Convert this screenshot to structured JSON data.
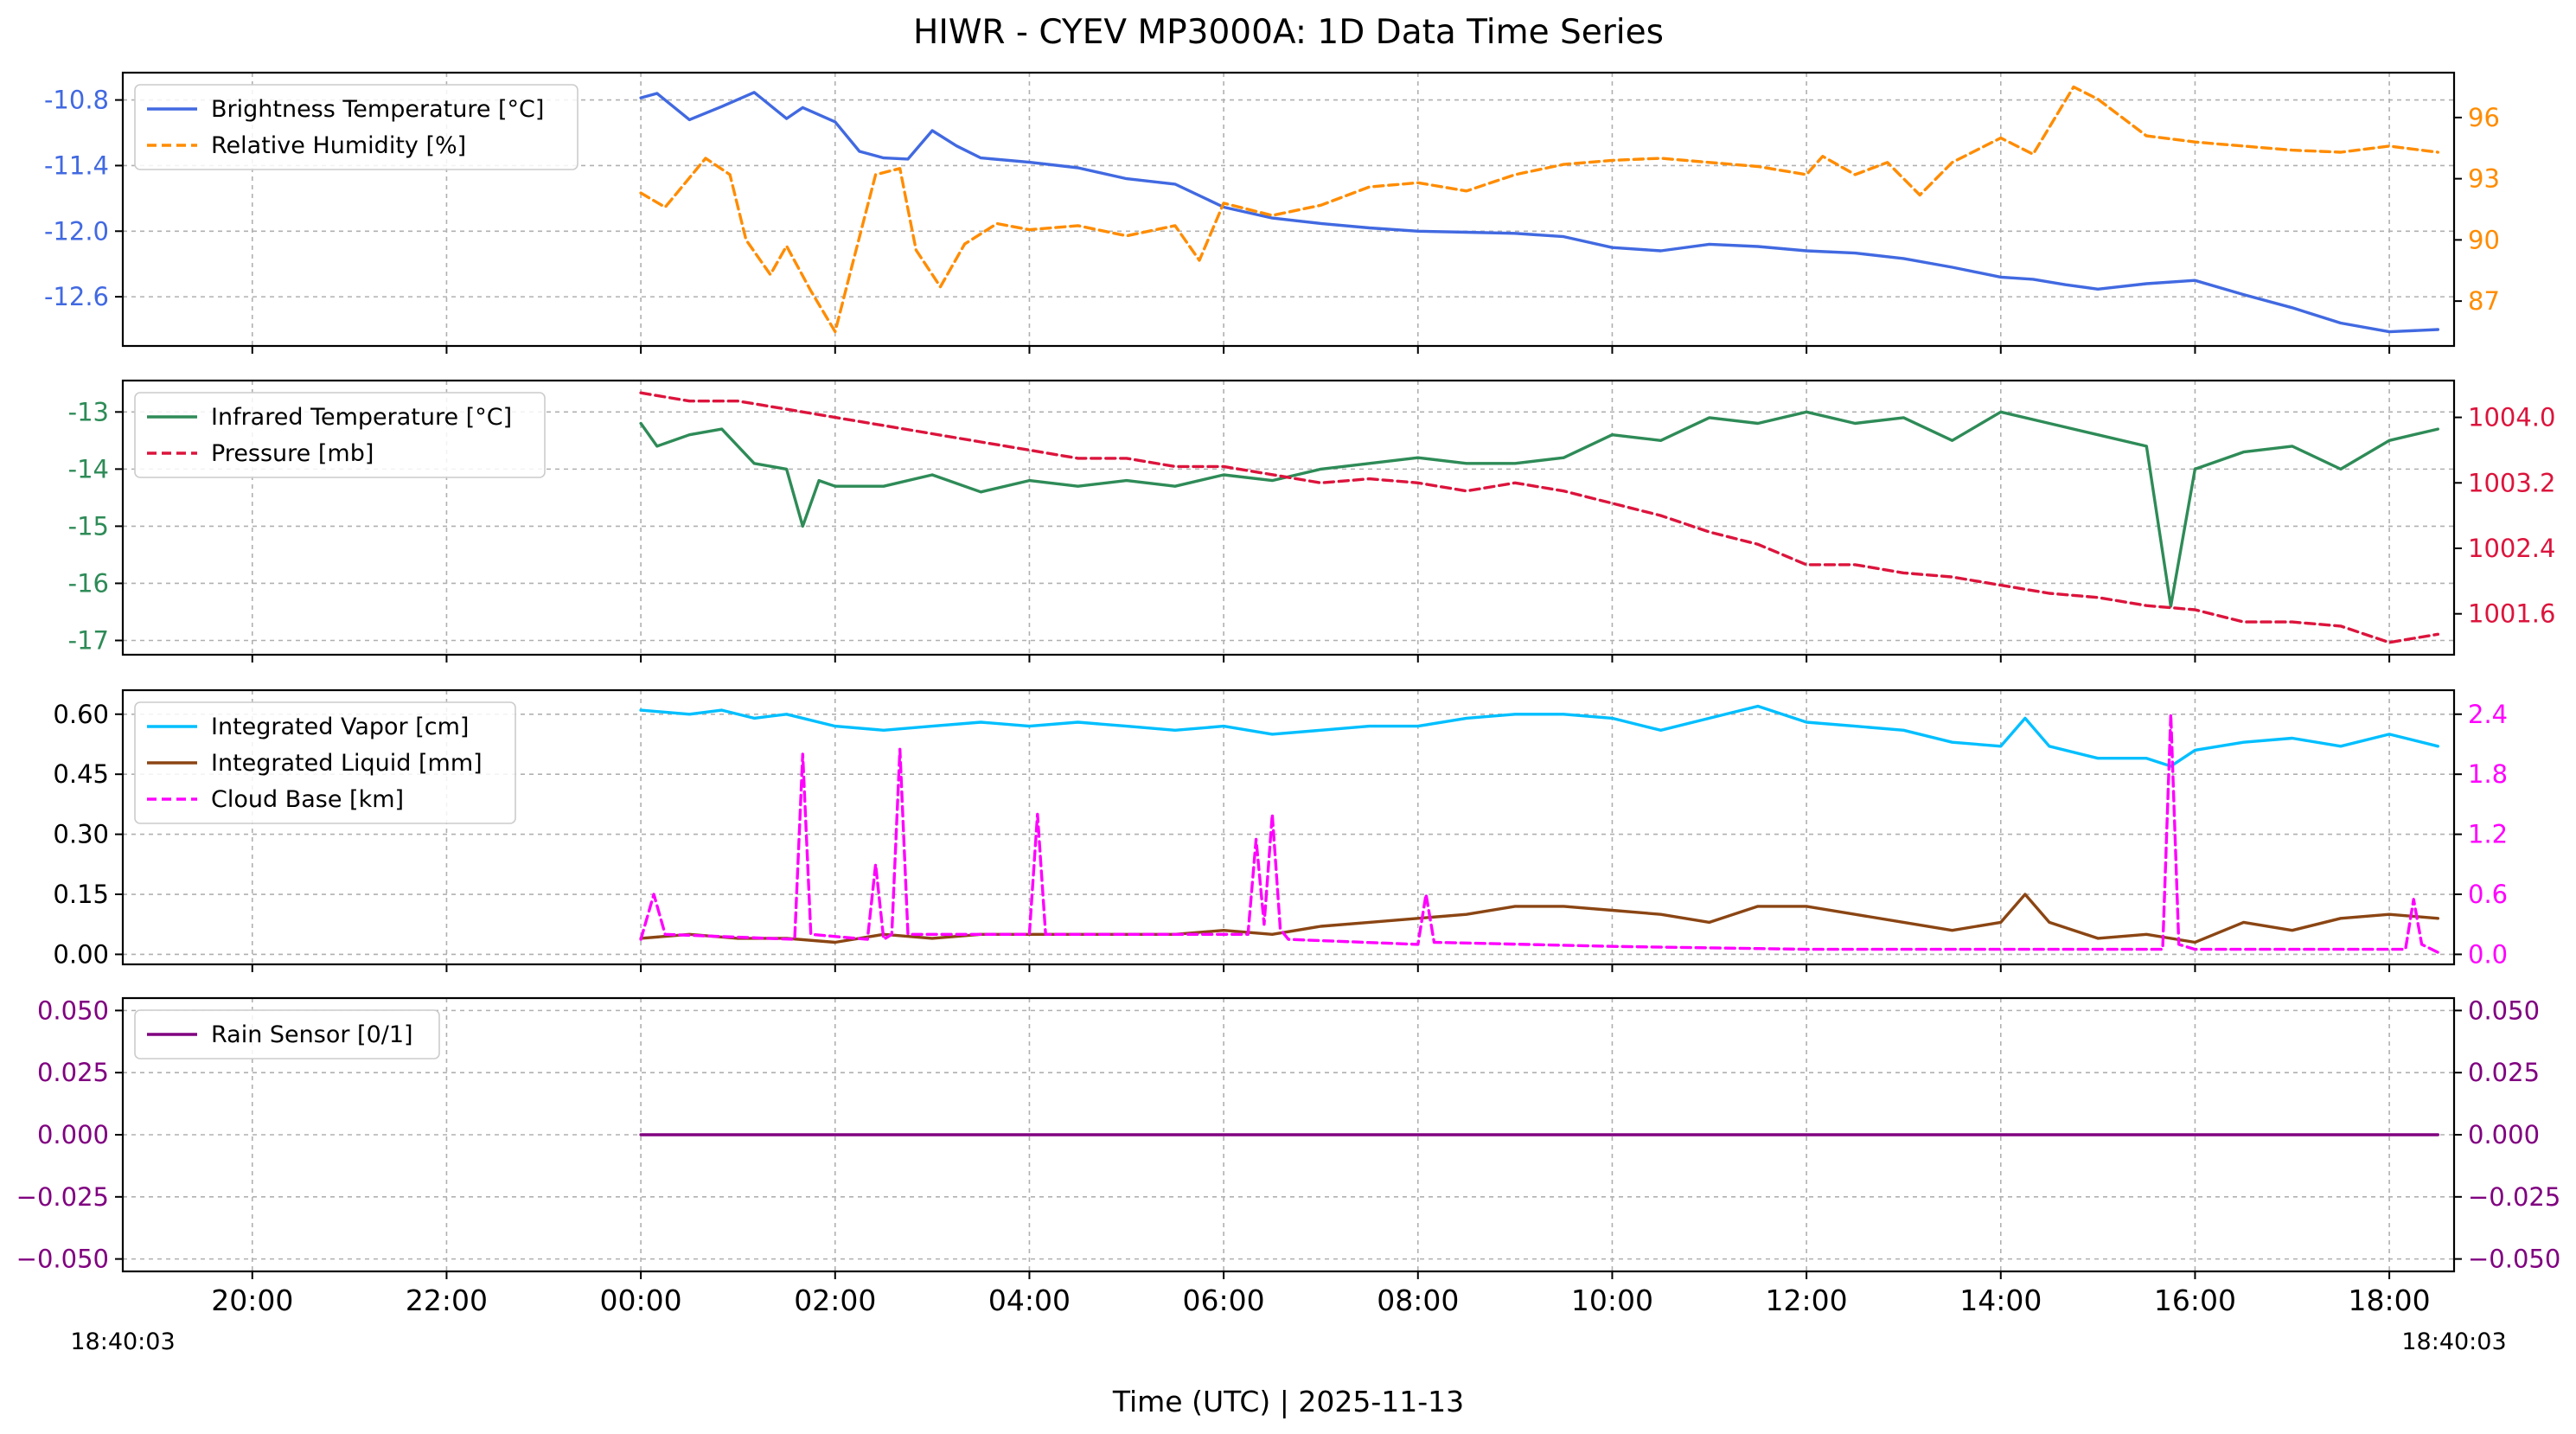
{
  "figure": {
    "title": "HIWR - CYEV MP3000A: 1D Data Time Series",
    "xlabel": "Time (UTC)  |  2025-11-13",
    "x_start_label": "18:40:03",
    "x_end_label": "18:40:03"
  },
  "chart_data": [
    {
      "type": "line",
      "panel": 1,
      "xlim": [
        "2025-11-12T18:40",
        "2025-11-13T18:40"
      ],
      "x_ticks": [
        "20:00",
        "22:00",
        "00:00",
        "02:00",
        "04:00",
        "06:00",
        "08:00",
        "10:00",
        "12:00",
        "14:00",
        "16:00",
        "18:00"
      ],
      "grid": true,
      "legend_position": "top-left",
      "left_axis": {
        "ylim": [
          -13.05,
          -10.55
        ],
        "ticks": [
          "-10.8",
          "-11.4",
          "-12.0",
          "-12.6"
        ],
        "color": "#4169e1"
      },
      "right_axis": {
        "ylim": [
          84.8,
          98.2
        ],
        "ticks": [
          "96",
          "93",
          "90",
          "87"
        ],
        "color": "#ff8c00"
      },
      "series": [
        {
          "name": "Brightness Temperature [°C]",
          "axis": "left",
          "color": "#4169e1",
          "style": "solid",
          "x": [
            "00:00",
            "00:10",
            "00:30",
            "00:50",
            "01:10",
            "01:30",
            "01:40",
            "02:00",
            "02:15",
            "02:30",
            "02:45",
            "03:00",
            "03:15",
            "03:30",
            "04:00",
            "04:30",
            "05:00",
            "05:30",
            "06:00",
            "06:30",
            "07:00",
            "07:30",
            "08:00",
            "08:30",
            "09:00",
            "09:30",
            "10:00",
            "10:30",
            "11:00",
            "11:30",
            "12:00",
            "12:30",
            "13:00",
            "13:30",
            "14:00",
            "14:20",
            "14:40",
            "15:00",
            "15:30",
            "16:00",
            "16:30",
            "17:00",
            "17:30",
            "18:00",
            "18:30"
          ],
          "values": [
            -10.78,
            -10.74,
            -10.98,
            -10.86,
            -10.73,
            -10.97,
            -10.87,
            -11.0,
            -11.27,
            -11.33,
            -11.34,
            -11.08,
            -11.22,
            -11.33,
            -11.37,
            -11.42,
            -11.52,
            -11.57,
            -11.78,
            -11.88,
            -11.93,
            -11.97,
            -12.0,
            -12.01,
            -12.02,
            -12.05,
            -12.15,
            -12.18,
            -12.12,
            -12.14,
            -12.18,
            -12.2,
            -12.25,
            -12.33,
            -12.42,
            -12.44,
            -12.49,
            -12.53,
            -12.48,
            -12.45,
            -12.58,
            -12.7,
            -12.84,
            -12.92,
            -12.9
          ]
        },
        {
          "name": "Relative Humidity [%]",
          "axis": "right",
          "color": "#ff8c00",
          "style": "dashed",
          "x": [
            "00:00",
            "00:15",
            "00:40",
            "00:55",
            "01:05",
            "01:20",
            "01:30",
            "01:45",
            "02:00",
            "02:10",
            "02:25",
            "02:40",
            "02:50",
            "03:05",
            "03:20",
            "03:40",
            "04:00",
            "04:30",
            "05:00",
            "05:30",
            "05:45",
            "06:00",
            "06:30",
            "07:00",
            "07:30",
            "08:00",
            "08:30",
            "09:00",
            "09:30",
            "10:00",
            "10:30",
            "11:00",
            "11:30",
            "12:00",
            "12:10",
            "12:30",
            "12:50",
            "13:10",
            "13:30",
            "13:50",
            "14:00",
            "14:20",
            "14:45",
            "15:00",
            "15:30",
            "16:00",
            "16:30",
            "17:00",
            "17:30",
            "18:00",
            "18:30"
          ],
          "values": [
            92.3,
            91.6,
            94.0,
            93.2,
            90.0,
            88.3,
            89.7,
            87.5,
            85.5,
            88.6,
            93.2,
            93.5,
            89.5,
            87.7,
            89.8,
            90.8,
            90.5,
            90.7,
            90.2,
            90.7,
            89.0,
            91.8,
            91.2,
            91.7,
            92.6,
            92.8,
            92.4,
            93.2,
            93.7,
            93.9,
            94.0,
            93.8,
            93.6,
            93.2,
            94.1,
            93.2,
            93.8,
            92.2,
            93.8,
            94.6,
            95.0,
            94.2,
            97.5,
            96.9,
            95.1,
            94.8,
            94.6,
            94.4,
            94.3,
            94.6,
            94.3
          ]
        }
      ]
    },
    {
      "type": "line",
      "panel": 2,
      "xlim": [
        "2025-11-12T18:40",
        "2025-11-13T18:40"
      ],
      "grid": true,
      "legend_position": "top-left",
      "left_axis": {
        "ylim": [
          -17.25,
          -12.45
        ],
        "ticks": [
          "-13",
          "-14",
          "-15",
          "-16",
          "-17"
        ],
        "color": "#2e8b57"
      },
      "right_axis": {
        "ylim": [
          1001.1,
          1004.45
        ],
        "ticks": [
          "1004.0",
          "1003.2",
          "1002.4",
          "1001.6"
        ],
        "color": "#dc143c"
      },
      "series": [
        {
          "name": "Infrared Temperature [°C]",
          "axis": "left",
          "color": "#2e8b57",
          "style": "solid",
          "x": [
            "00:00",
            "00:10",
            "00:30",
            "00:50",
            "01:10",
            "01:30",
            "01:40",
            "01:50",
            "02:00",
            "02:30",
            "03:00",
            "03:30",
            "04:00",
            "04:30",
            "05:00",
            "05:30",
            "06:00",
            "06:30",
            "07:00",
            "07:30",
            "08:00",
            "08:30",
            "09:00",
            "09:30",
            "10:00",
            "10:30",
            "11:00",
            "11:30",
            "12:00",
            "12:30",
            "13:00",
            "13:30",
            "14:00",
            "14:30",
            "15:00",
            "15:30",
            "15:45",
            "16:00",
            "16:30",
            "17:00",
            "17:30",
            "18:00",
            "18:30"
          ],
          "values": [
            -13.2,
            -13.6,
            -13.4,
            -13.3,
            -13.9,
            -14.0,
            -15.0,
            -14.2,
            -14.3,
            -14.3,
            -14.1,
            -14.4,
            -14.2,
            -14.3,
            -14.2,
            -14.3,
            -14.1,
            -14.2,
            -14.0,
            -13.9,
            -13.8,
            -13.9,
            -13.9,
            -13.8,
            -13.4,
            -13.5,
            -13.1,
            -13.2,
            -13.0,
            -13.2,
            -13.1,
            -13.5,
            -13.0,
            -13.2,
            -13.4,
            -13.6,
            -16.4,
            -14.0,
            -13.7,
            -13.6,
            -14.0,
            -13.5,
            -13.3
          ]
        },
        {
          "name": "Pressure [mb]",
          "axis": "right",
          "color": "#dc143c",
          "style": "dashed",
          "x": [
            "00:00",
            "00:30",
            "01:00",
            "01:30",
            "02:00",
            "02:30",
            "03:00",
            "03:30",
            "04:00",
            "04:30",
            "05:00",
            "05:30",
            "06:00",
            "06:30",
            "07:00",
            "07:30",
            "08:00",
            "08:30",
            "09:00",
            "09:30",
            "10:00",
            "10:30",
            "11:00",
            "11:30",
            "12:00",
            "12:30",
            "13:00",
            "13:30",
            "14:00",
            "14:30",
            "15:00",
            "15:30",
            "16:00",
            "16:30",
            "17:00",
            "17:30",
            "18:00",
            "18:30"
          ],
          "values": [
            1004.3,
            1004.2,
            1004.2,
            1004.1,
            1004.0,
            1003.9,
            1003.8,
            1003.7,
            1003.6,
            1003.5,
            1003.5,
            1003.4,
            1003.4,
            1003.3,
            1003.2,
            1003.25,
            1003.2,
            1003.1,
            1003.2,
            1003.1,
            1002.95,
            1002.8,
            1002.6,
            1002.45,
            1002.2,
            1002.2,
            1002.1,
            1002.05,
            1001.95,
            1001.85,
            1001.8,
            1001.7,
            1001.65,
            1001.5,
            1001.5,
            1001.45,
            1001.25,
            1001.35
          ]
        }
      ]
    },
    {
      "type": "line",
      "panel": 3,
      "xlim": [
        "2025-11-12T18:40",
        "2025-11-13T18:40"
      ],
      "grid": true,
      "legend_position": "top-left",
      "left_axis": {
        "ylim": [
          -0.025,
          0.66
        ],
        "ticks": [
          "0.60",
          "0.45",
          "0.30",
          "0.15",
          "0.00"
        ],
        "color": "#000000"
      },
      "right_axis": {
        "ylim": [
          -0.1,
          2.64
        ],
        "ticks": [
          "2.4",
          "1.8",
          "1.2",
          "0.6",
          "0.0"
        ],
        "color": "#ff00ff"
      },
      "series": [
        {
          "name": "Integrated Vapor [cm]",
          "axis": "left",
          "color": "#00bfff",
          "style": "solid",
          "x": [
            "00:00",
            "00:30",
            "00:50",
            "01:10",
            "01:30",
            "02:00",
            "02:30",
            "03:00",
            "03:30",
            "04:00",
            "04:30",
            "05:00",
            "05:30",
            "06:00",
            "06:30",
            "07:00",
            "07:30",
            "08:00",
            "08:30",
            "09:00",
            "09:30",
            "10:00",
            "10:30",
            "11:00",
            "11:30",
            "12:00",
            "12:30",
            "13:00",
            "13:30",
            "14:00",
            "14:15",
            "14:30",
            "15:00",
            "15:30",
            "15:45",
            "16:00",
            "16:30",
            "17:00",
            "17:30",
            "18:00",
            "18:30"
          ],
          "values": [
            0.61,
            0.6,
            0.61,
            0.59,
            0.6,
            0.57,
            0.56,
            0.57,
            0.58,
            0.57,
            0.58,
            0.57,
            0.56,
            0.57,
            0.55,
            0.56,
            0.57,
            0.57,
            0.59,
            0.6,
            0.6,
            0.59,
            0.56,
            0.59,
            0.62,
            0.58,
            0.57,
            0.56,
            0.53,
            0.52,
            0.59,
            0.52,
            0.49,
            0.49,
            0.47,
            0.51,
            0.53,
            0.54,
            0.52,
            0.55,
            0.52
          ]
        },
        {
          "name": "Integrated Liquid [mm]",
          "axis": "left",
          "color": "#8b4513",
          "style": "solid",
          "x": [
            "00:00",
            "00:30",
            "01:00",
            "01:30",
            "02:00",
            "02:30",
            "03:00",
            "03:30",
            "04:00",
            "04:30",
            "05:00",
            "05:30",
            "06:00",
            "06:30",
            "07:00",
            "07:30",
            "08:00",
            "08:30",
            "09:00",
            "09:30",
            "10:00",
            "10:30",
            "11:00",
            "11:30",
            "12:00",
            "12:30",
            "13:00",
            "13:30",
            "14:00",
            "14:15",
            "14:30",
            "15:00",
            "15:30",
            "16:00",
            "16:30",
            "17:00",
            "17:30",
            "18:00",
            "18:30"
          ],
          "values": [
            0.04,
            0.05,
            0.04,
            0.04,
            0.03,
            0.05,
            0.04,
            0.05,
            0.05,
            0.05,
            0.05,
            0.05,
            0.06,
            0.05,
            0.07,
            0.08,
            0.09,
            0.1,
            0.12,
            0.12,
            0.11,
            0.1,
            0.08,
            0.12,
            0.12,
            0.1,
            0.08,
            0.06,
            0.08,
            0.15,
            0.08,
            0.04,
            0.05,
            0.03,
            0.08,
            0.06,
            0.09,
            0.1,
            0.09
          ]
        },
        {
          "name": "Cloud Base [km]",
          "axis": "right",
          "color": "#ff00ff",
          "style": "dashed",
          "x": [
            "00:00",
            "00:08",
            "00:15",
            "01:35",
            "01:40",
            "01:45",
            "02:20",
            "02:25",
            "02:30",
            "02:35",
            "02:40",
            "02:45",
            "04:00",
            "04:05",
            "04:10",
            "06:15",
            "06:20",
            "06:25",
            "06:30",
            "06:35",
            "06:40",
            "08:00",
            "08:05",
            "08:10",
            "10:00",
            "12:00",
            "14:00",
            "15:40",
            "15:45",
            "15:50",
            "16:00",
            "18:10",
            "18:15",
            "18:20",
            "18:30"
          ],
          "values": [
            0.15,
            0.6,
            0.2,
            0.15,
            2.0,
            0.2,
            0.15,
            0.9,
            0.15,
            0.2,
            2.05,
            0.2,
            0.2,
            1.4,
            0.2,
            0.2,
            1.15,
            0.3,
            1.4,
            0.25,
            0.15,
            0.1,
            0.6,
            0.12,
            0.08,
            0.05,
            0.05,
            0.05,
            2.4,
            0.1,
            0.05,
            0.05,
            0.55,
            0.1,
            0.02
          ]
        }
      ]
    },
    {
      "type": "line",
      "panel": 4,
      "xlim": [
        "2025-11-12T18:40",
        "2025-11-13T18:40"
      ],
      "grid": true,
      "legend_position": "top-left",
      "left_axis": {
        "ylim": [
          -0.055,
          0.055
        ],
        "ticks": [
          "0.050",
          "0.025",
          "0.000",
          "−0.025",
          "−0.050"
        ],
        "color": "#800080"
      },
      "right_axis": {
        "ylim": [
          -0.055,
          0.055
        ],
        "ticks": [
          "0.050",
          "0.025",
          "0.000",
          "−0.025",
          "−0.050"
        ],
        "color": "#800080"
      },
      "series": [
        {
          "name": "Rain Sensor [0/1]",
          "axis": "left",
          "color": "#800080",
          "style": "solid",
          "x": [
            "00:00",
            "18:30"
          ],
          "values": [
            0,
            0
          ]
        }
      ]
    }
  ]
}
